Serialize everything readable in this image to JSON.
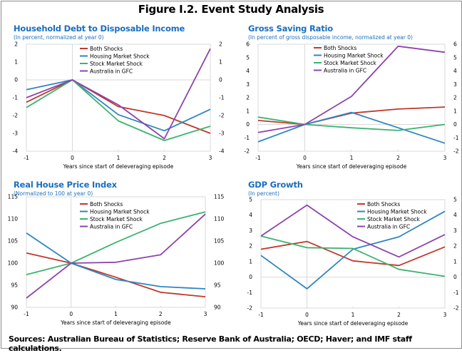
{
  "figure_title": "Figure I.2. Event Study Analysis",
  "sources": "Sources: Australian Bureau of Statistics; Reserve Bank of Australia; OECD; Haver; and IMF staff calculations.",
  "colors": {
    "Both Shocks": "#c0392b",
    "Housing Market Shock": "#2e86c1",
    "Stock Market Shock": "#3cb371",
    "Australia in GFC": "#8e44ad"
  },
  "chart_data": [
    {
      "type": "line",
      "title": "Household Debt to Disposable Income",
      "subtitle": "(In percent, normalized at year 0)",
      "xlabel": "Years since start of deleveraging episode",
      "ylabel": "",
      "x": [
        -1,
        0,
        1,
        2,
        3
      ],
      "ylim": [
        -4,
        2
      ],
      "yticks": [
        -4,
        -3,
        -2,
        -1,
        0,
        1,
        2
      ],
      "legend": "top-center",
      "series": [
        {
          "name": "Both Shocks",
          "values": [
            -1.25,
            0,
            -1.5,
            -2.0,
            -3.0
          ]
        },
        {
          "name": "Housing Market Shock",
          "values": [
            -0.55,
            0,
            -1.95,
            -2.85,
            -1.65
          ]
        },
        {
          "name": "Stock Market Shock",
          "values": [
            -1.55,
            0,
            -2.3,
            -3.4,
            -2.6
          ]
        },
        {
          "name": "Australia in GFC",
          "values": [
            -1.0,
            0,
            -1.4,
            -3.3,
            1.75
          ]
        }
      ]
    },
    {
      "type": "line",
      "title": "Gross Saving Ratio",
      "subtitle": "(In percent of gross disposable income, normalized at year 0)",
      "xlabel": "Years since start of deleveraging episode",
      "ylabel": "",
      "x": [
        -1,
        0,
        1,
        2,
        3
      ],
      "ylim": [
        -2,
        6
      ],
      "yticks": [
        -2,
        -1,
        0,
        1,
        2,
        3,
        4,
        5,
        6
      ],
      "legend": "top-center",
      "series": [
        {
          "name": "Both Shocks",
          "values": [
            0.3,
            0,
            0.85,
            1.15,
            1.3
          ]
        },
        {
          "name": "Housing Market Shock",
          "values": [
            -1.3,
            0,
            0.9,
            -0.25,
            -1.4
          ]
        },
        {
          "name": "Stock Market Shock",
          "values": [
            0.55,
            0,
            -0.25,
            -0.45,
            0.0
          ]
        },
        {
          "name": "Australia in GFC",
          "values": [
            -0.6,
            0,
            2.1,
            5.85,
            5.4
          ]
        }
      ]
    },
    {
      "type": "line",
      "title": "Real House Price Index",
      "subtitle": "(Normalized to 100 at year 0)",
      "xlabel": "Years since start of deleveraging episode",
      "ylabel": "",
      "x": [
        -1,
        0,
        1,
        2,
        3
      ],
      "ylim": [
        90,
        115
      ],
      "yticks": [
        90,
        95,
        100,
        105,
        110,
        115
      ],
      "legend": "top-center",
      "series": [
        {
          "name": "Both Shocks",
          "values": [
            102.3,
            100,
            96.8,
            93.4,
            92.4
          ]
        },
        {
          "name": "Housing Market Shock",
          "values": [
            106.8,
            100,
            96.3,
            94.7,
            94.2
          ]
        },
        {
          "name": "Stock Market Shock",
          "values": [
            97.4,
            100,
            104.7,
            109.0,
            111.6
          ]
        },
        {
          "name": "Australia in GFC",
          "values": [
            92.1,
            100,
            100.2,
            101.9,
            111.1
          ]
        }
      ]
    },
    {
      "type": "line",
      "title": "GDP Growth",
      "subtitle": "(In percent)",
      "xlabel": "Years since start of deleveraging episode",
      "ylabel": "",
      "x": [
        -1,
        0,
        1,
        2,
        3
      ],
      "ylim": [
        -2,
        5
      ],
      "yticks": [
        -2,
        -1,
        0,
        1,
        2,
        3,
        4,
        5
      ],
      "legend": "top-right",
      "series": [
        {
          "name": "Both Shocks",
          "values": [
            1.8,
            2.3,
            1.05,
            0.75,
            1.95
          ]
        },
        {
          "name": "Housing Market Shock",
          "values": [
            1.4,
            -0.75,
            1.8,
            2.6,
            4.25
          ]
        },
        {
          "name": "Stock Market Shock",
          "values": [
            2.65,
            1.9,
            1.85,
            0.5,
            0.05
          ]
        },
        {
          "name": "Australia in GFC",
          "values": [
            2.65,
            4.65,
            2.6,
            1.3,
            2.75
          ]
        }
      ]
    }
  ]
}
